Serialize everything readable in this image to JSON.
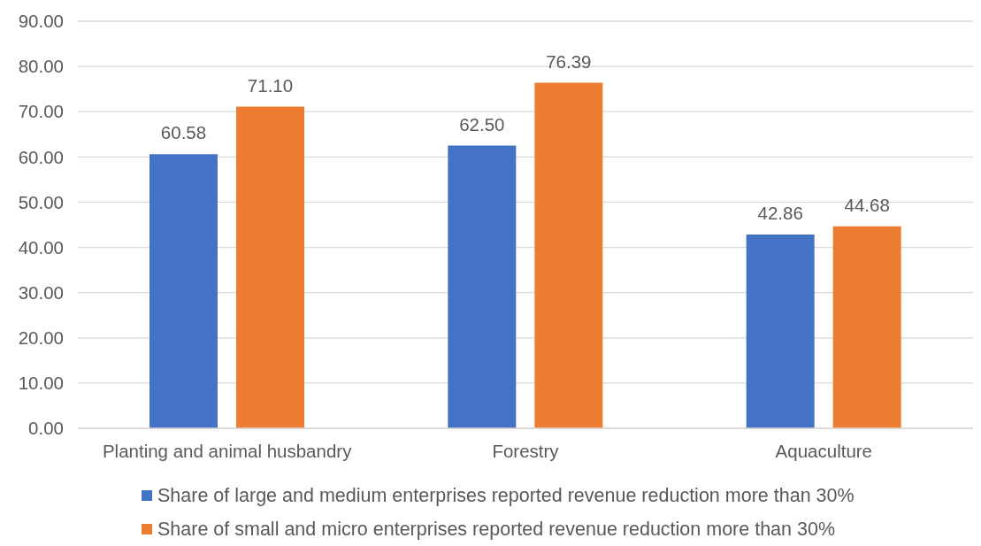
{
  "chart_data": {
    "type": "bar",
    "categories": [
      "Planting and animal husbandry",
      "Forestry",
      "Aquaculture"
    ],
    "series": [
      {
        "name": "Share of large and medium enterprises reported revenue reduction more than 30%",
        "color": "#4472c4",
        "values": [
          60.58,
          62.5,
          42.86
        ],
        "value_labels": [
          "60.58",
          "62.50",
          "42.86"
        ]
      },
      {
        "name": "Share of small and micro enterprises reported revenue reduction more than 30%",
        "color": "#ed7d31",
        "values": [
          71.1,
          76.39,
          44.68
        ],
        "value_labels": [
          "71.10",
          "76.39",
          "44.68"
        ]
      }
    ],
    "ylim": [
      0,
      90
    ],
    "yticks": [
      {
        "value": 0,
        "label": "0.00"
      },
      {
        "value": 10,
        "label": "10.00"
      },
      {
        "value": 20,
        "label": "20.00"
      },
      {
        "value": 30,
        "label": "30.00"
      },
      {
        "value": 40,
        "label": "40.00"
      },
      {
        "value": 50,
        "label": "50.00"
      },
      {
        "value": 60,
        "label": "60.00"
      },
      {
        "value": 70,
        "label": "70.00"
      },
      {
        "value": 80,
        "label": "80.00"
      },
      {
        "value": 90,
        "label": "90.00"
      }
    ],
    "grid": "y",
    "legend": "bottom"
  }
}
